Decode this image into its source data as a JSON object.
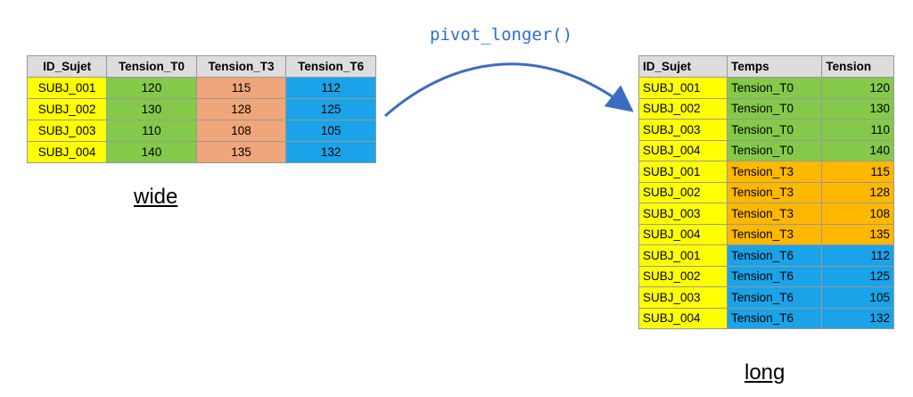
{
  "operation": "pivot_longer()",
  "wide": {
    "label": "wide",
    "header": [
      "ID_Sujet",
      "Tension_T0",
      "Tension_T3",
      "Tension_T6"
    ],
    "rows": [
      [
        "SUBJ_001",
        120,
        115,
        112
      ],
      [
        "SUBJ_002",
        130,
        128,
        125
      ],
      [
        "SUBJ_003",
        110,
        108,
        105
      ],
      [
        "SUBJ_004",
        140,
        135,
        132
      ]
    ]
  },
  "long": {
    "label": "long",
    "header": [
      "ID_Sujet",
      "Temps",
      "Tension"
    ],
    "rows": [
      [
        "SUBJ_001",
        "Tension_T0",
        120
      ],
      [
        "SUBJ_002",
        "Tension_T0",
        130
      ],
      [
        "SUBJ_003",
        "Tension_T0",
        110
      ],
      [
        "SUBJ_004",
        "Tension_T0",
        140
      ],
      [
        "SUBJ_001",
        "Tension_T3",
        115
      ],
      [
        "SUBJ_002",
        "Tension_T3",
        128
      ],
      [
        "SUBJ_003",
        "Tension_T3",
        108
      ],
      [
        "SUBJ_004",
        "Tension_T3",
        135
      ],
      [
        "SUBJ_001",
        "Tension_T6",
        112
      ],
      [
        "SUBJ_002",
        "Tension_T6",
        125
      ],
      [
        "SUBJ_003",
        "Tension_T6",
        105
      ],
      [
        "SUBJ_004",
        "Tension_T6",
        132
      ]
    ]
  }
}
